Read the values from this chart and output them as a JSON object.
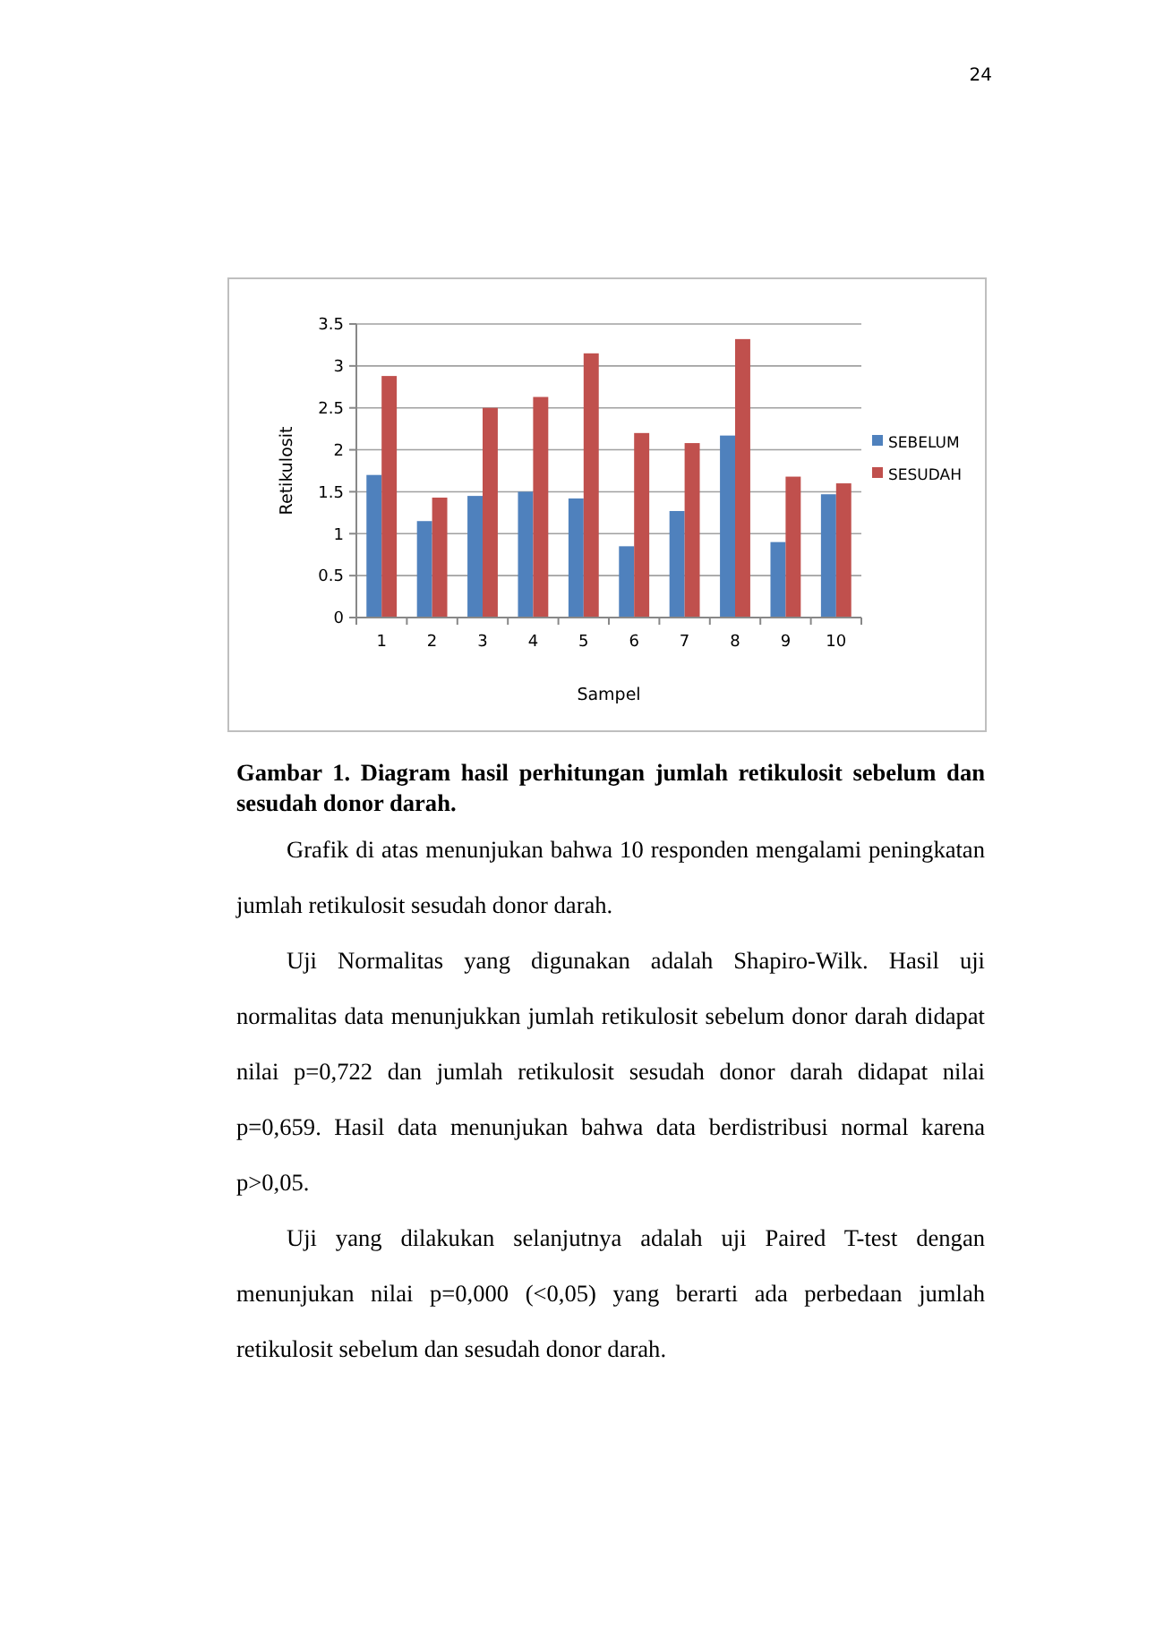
{
  "chart_data": {
    "type": "bar",
    "title": "Gambar 1. Diagram hasil perhitungan jumlah retikulosit sebelum dan sesudah donor darah.",
    "xlabel": "Sampel",
    "ylabel": "Retikulosit",
    "categories": [
      "1",
      "2",
      "3",
      "4",
      "5",
      "6",
      "7",
      "8",
      "9",
      "10"
    ],
    "series": [
      {
        "name": "SEBELUM",
        "color": "#4f81bd",
        "values": [
          1.7,
          1.15,
          1.45,
          1.5,
          1.42,
          0.85,
          1.27,
          2.17,
          0.9,
          1.47
        ]
      },
      {
        "name": "SESUDAH",
        "color": "#c0504d",
        "values": [
          2.88,
          1.43,
          2.5,
          2.63,
          3.15,
          2.2,
          2.08,
          3.32,
          1.68,
          1.6
        ]
      }
    ],
    "ylim": [
      0,
      3.5
    ],
    "yticks": [
      {
        "value": 0,
        "label": "0"
      },
      {
        "value": 0.5,
        "label": "0.5"
      },
      {
        "value": 1,
        "label": "1"
      },
      {
        "value": 1.5,
        "label": "1.5"
      },
      {
        "value": 2,
        "label": "2"
      },
      {
        "value": 2.5,
        "label": "2.5"
      },
      {
        "value": 3,
        "label": "3"
      },
      {
        "value": 3.5,
        "label": "3.5"
      }
    ],
    "grid": "y",
    "legend": "right",
    "annotations": [
      "24",
      "Grafik di atas menunjukan bahwa 10 responden mengalami peningkatan jumlah retikulosit sesudah donor darah.",
      "Uji Normalitas yang digunakan adalah Shapiro-Wilk. Hasil uji normalitas data menunjukkan jumlah retikulosit sebelum donor darah didapat nilai p=0,722 dan jumlah retikulosit sesudah donor darah didapat nilai p=0,659. Hasil data menunjukan bahwa data berdistribusi normal karena p>0,05.",
      "Uji yang dilakukan selanjutnya adalah uji Paired T-test dengan menunjukan nilai p=0,000 (<0,05) yang berarti ada perbedaan jumlah retikulosit sebelum dan sesudah donor darah."
    ]
  }
}
